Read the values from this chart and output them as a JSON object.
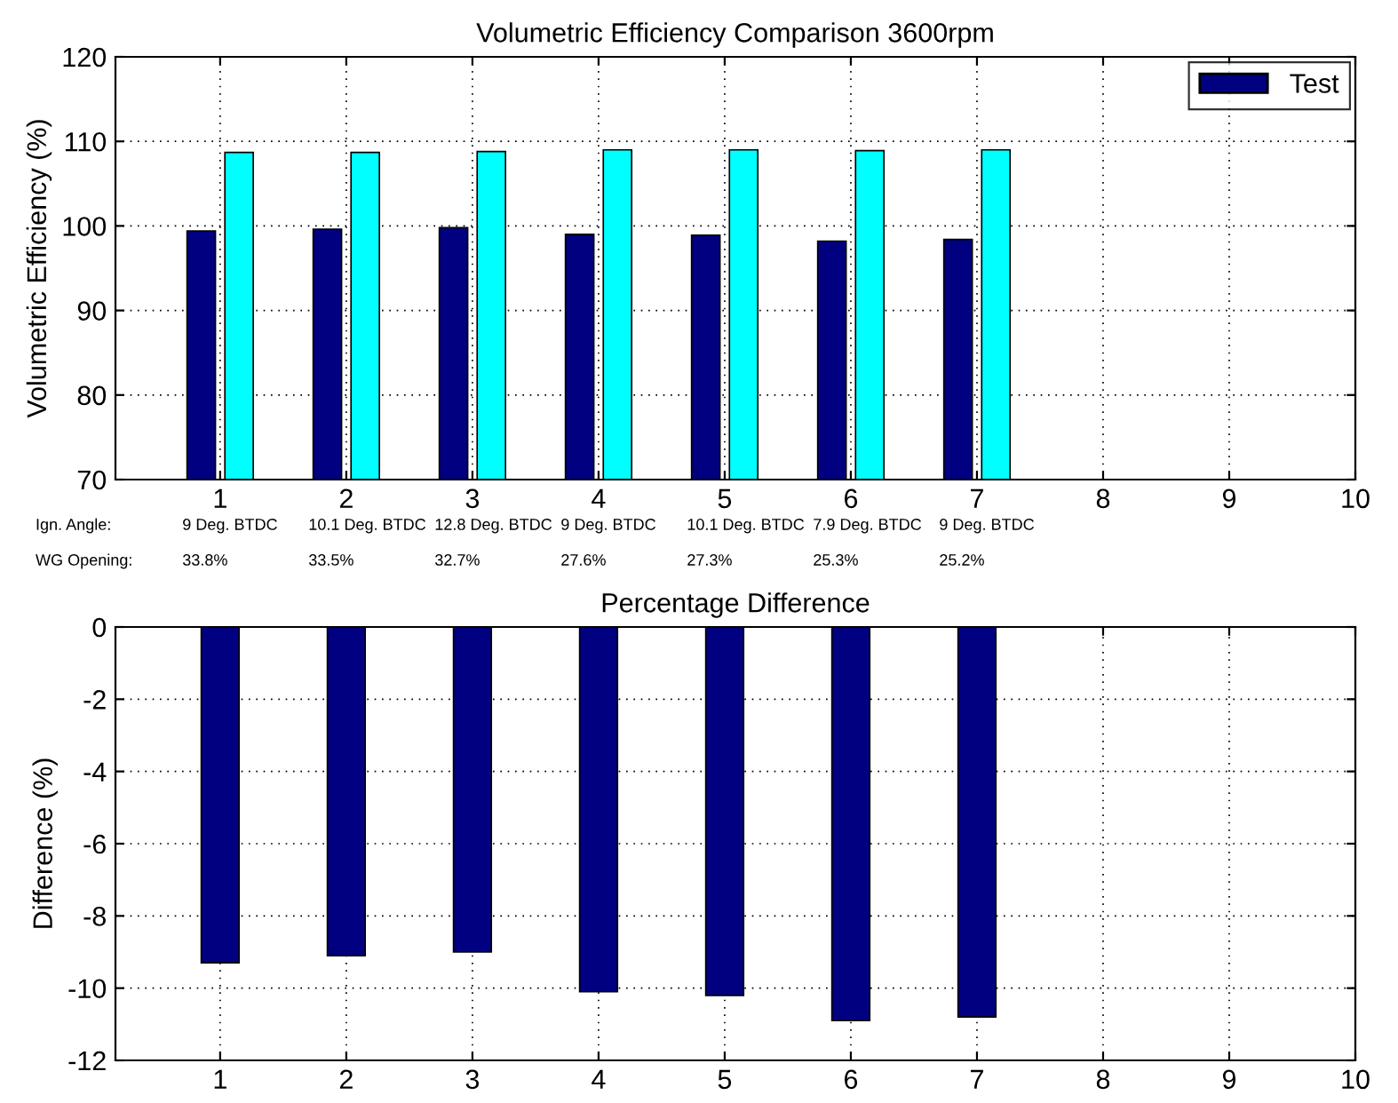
{
  "chart_data": [
    {
      "type": "bar",
      "title": "Volumetric Efficiency Comparison 3600rpm",
      "ylabel": "Volumetric Efficiency (%)",
      "x": [
        1,
        2,
        3,
        4,
        5,
        6,
        7
      ],
      "series": [
        {
          "name": "Test",
          "color": "#000080",
          "values": [
            99.4,
            99.6,
            99.8,
            99.0,
            98.9,
            98.2,
            98.4
          ]
        },
        {
          "color": "#00ffff",
          "values": [
            108.7,
            108.7,
            108.8,
            109.0,
            109.0,
            108.9,
            109.0
          ]
        }
      ],
      "xlim": [
        0.17,
        10
      ],
      "xticks": [
        1,
        2,
        3,
        4,
        5,
        6,
        7,
        8,
        9,
        10
      ],
      "ylim": [
        70,
        120
      ],
      "yticks": [
        70,
        80,
        90,
        100,
        110,
        120
      ],
      "grid": true,
      "legend": "top right",
      "annotations": [
        "Ign. Angle:",
        "9 Deg. BTDC",
        "10.1 Deg. BTDC",
        "12.8 Deg. BTDC",
        "9 Deg. BTDC",
        "10.1 Deg. BTDC",
        "7.9 Deg. BTDC",
        "9 Deg. BTDC",
        "WG Opening:",
        "33.8%",
        "33.5%",
        "32.7%",
        "27.6%",
        "27.3%",
        "25.3%",
        "25.2%"
      ]
    },
    {
      "type": "bar",
      "title": "Percentage Difference",
      "ylabel": "Difference (%)",
      "x": [
        1,
        2,
        3,
        4,
        5,
        6,
        7
      ],
      "series": [
        {
          "color": "#000080",
          "values": [
            -9.3,
            -9.1,
            -9.0,
            -10.1,
            -10.2,
            -10.9,
            -10.8
          ]
        }
      ],
      "xlim": [
        0.17,
        10
      ],
      "xticks": [
        1,
        2,
        3,
        4,
        5,
        6,
        7,
        8,
        9,
        10
      ],
      "ylim": [
        -12,
        0
      ],
      "yticks": [
        -12,
        -10,
        -8,
        -6,
        -4,
        -2,
        0
      ],
      "grid": true
    }
  ]
}
